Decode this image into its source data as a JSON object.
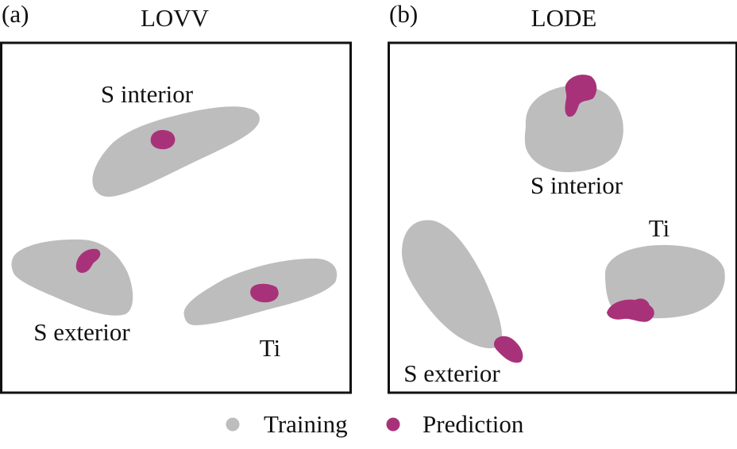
{
  "colors": {
    "training": "#bdbdbd",
    "prediction": "#a83279",
    "frame": "#111111",
    "text": "#111111"
  },
  "legend": {
    "training": "Training",
    "prediction": "Prediction"
  },
  "chart_data": [
    {
      "type": "scatter",
      "panel_tag": "(a)",
      "title": "LOVV",
      "xlabel": "",
      "ylabel": "",
      "grid": false,
      "labels": [
        "S interior",
        "S exterior",
        "Ti"
      ],
      "series": [
        {
          "name": "Training",
          "clusters": [
            "S interior",
            "S exterior",
            "Ti"
          ]
        },
        {
          "name": "Prediction",
          "clusters": [
            "S interior",
            "S exterior",
            "Ti"
          ]
        }
      ]
    },
    {
      "type": "scatter",
      "panel_tag": "(b)",
      "title": "LODE",
      "xlabel": "",
      "ylabel": "",
      "grid": false,
      "labels": [
        "S interior",
        "Ti",
        "S exterior"
      ],
      "series": [
        {
          "name": "Training",
          "clusters": [
            "S interior",
            "S exterior",
            "Ti"
          ]
        },
        {
          "name": "Prediction",
          "clusters": [
            "S interior",
            "S exterior",
            "Ti"
          ]
        }
      ]
    }
  ]
}
